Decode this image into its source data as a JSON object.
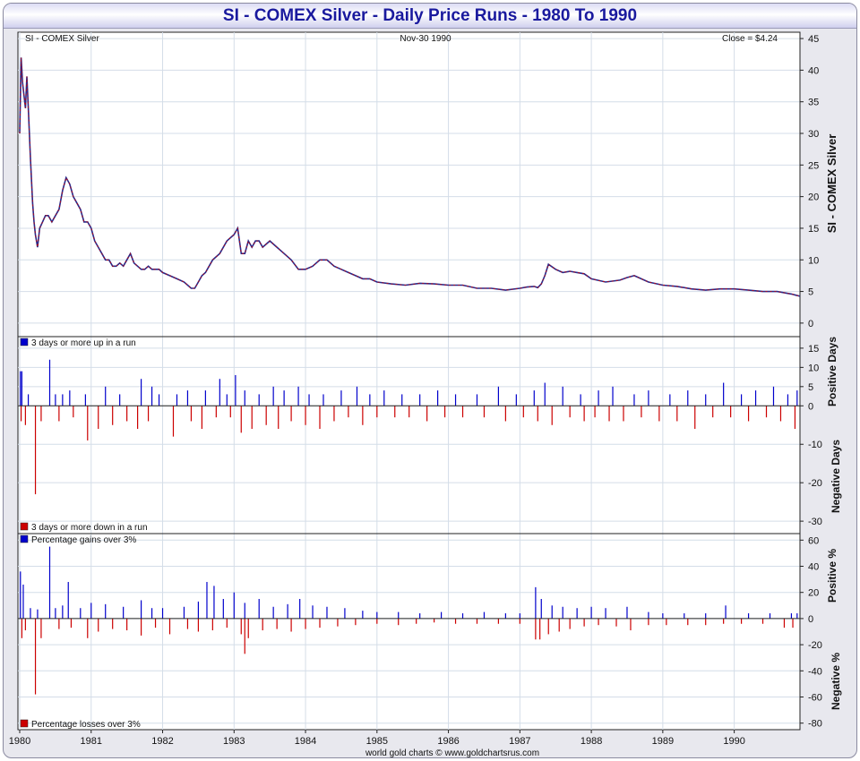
{
  "title": "SI  -  COMEX Silver - Daily Price Runs - 1980 To 1990",
  "footer": "world gold charts © www.goldchartsrus.com",
  "colors": {
    "up": "#0000cc",
    "down": "#cc0000",
    "grid": "#d4dde8",
    "title": "#1a1a9e"
  },
  "chart_data": [
    {
      "type": "line",
      "header_left": "SI  -  COMEX Silver",
      "header_center": "Nov-30  1990",
      "header_right": "Close = $4.24",
      "ylabel": "SI  -  COMEX Silver",
      "ylim": [
        -2,
        46
      ],
      "yticks": [
        0,
        5,
        10,
        15,
        20,
        25,
        30,
        35,
        40,
        45
      ],
      "xlim": [
        1980.0,
        1990.92
      ],
      "xticks": [
        1980,
        1981,
        1982,
        1983,
        1984,
        1985,
        1986,
        1987,
        1988,
        1989,
        1990
      ],
      "xtick_labels": [
        "1980",
        "1981",
        "1982",
        "1983",
        "1984",
        "1985",
        "1986",
        "1987",
        "1988",
        "1989",
        "1990"
      ],
      "series": [
        {
          "x": [
            1980.0,
            1980.02,
            1980.04,
            1980.06,
            1980.08,
            1980.1,
            1980.12,
            1980.15,
            1980.18,
            1980.2,
            1980.22,
            1980.25,
            1980.28,
            1980.32,
            1980.36,
            1980.4,
            1980.45,
            1980.5,
            1980.55,
            1980.6,
            1980.65,
            1980.7,
            1980.75,
            1980.8,
            1980.85,
            1980.9,
            1980.95,
            1981.0,
            1981.05,
            1981.1,
            1981.15,
            1981.2,
            1981.25,
            1981.3,
            1981.35,
            1981.4,
            1981.45,
            1981.5,
            1981.55,
            1981.6,
            1981.65,
            1981.7,
            1981.75,
            1981.8,
            1981.85,
            1981.9,
            1981.95,
            1982.0,
            1982.1,
            1982.2,
            1982.3,
            1982.4,
            1982.45,
            1982.5,
            1982.55,
            1982.6,
            1982.65,
            1982.7,
            1982.8,
            1982.9,
            1983.0,
            1983.05,
            1983.1,
            1983.15,
            1983.2,
            1983.25,
            1983.3,
            1983.35,
            1983.4,
            1983.5,
            1983.6,
            1983.7,
            1983.8,
            1983.9,
            1984.0,
            1984.1,
            1984.2,
            1984.3,
            1984.4,
            1984.5,
            1984.6,
            1984.7,
            1984.8,
            1984.9,
            1985.0,
            1985.2,
            1985.4,
            1985.6,
            1985.8,
            1986.0,
            1986.2,
            1986.4,
            1986.6,
            1986.8,
            1987.0,
            1987.1,
            1987.2,
            1987.25,
            1987.3,
            1987.35,
            1987.4,
            1987.5,
            1987.6,
            1987.7,
            1987.8,
            1987.9,
            1988.0,
            1988.2,
            1988.4,
            1988.5,
            1988.6,
            1988.8,
            1989.0,
            1989.2,
            1989.4,
            1989.6,
            1989.8,
            1990.0,
            1990.2,
            1990.4,
            1990.6,
            1990.8,
            1990.92
          ],
          "y": [
            30,
            42,
            38,
            36,
            34,
            39,
            34,
            26,
            19,
            16,
            14,
            12,
            15,
            16,
            17,
            17,
            16,
            17,
            18,
            21,
            23,
            22,
            20,
            19,
            18,
            16,
            16,
            15,
            13,
            12,
            11,
            10,
            10,
            9,
            9,
            9.5,
            9,
            10,
            11,
            9.5,
            9,
            8.5,
            8.5,
            9,
            8.5,
            8.5,
            8.5,
            8,
            7.5,
            7,
            6.5,
            5.5,
            5.5,
            6.5,
            7.5,
            8,
            9,
            10,
            11,
            13,
            14,
            15,
            11,
            11,
            13,
            12,
            13,
            13,
            12,
            13,
            12,
            11,
            10,
            8.5,
            8.5,
            9,
            10,
            10,
            9,
            8.5,
            8,
            7.5,
            7,
            7,
            6.5,
            6.2,
            6.0,
            6.3,
            6.2,
            6.0,
            6.0,
            5.5,
            5.5,
            5.2,
            5.5,
            5.7,
            5.8,
            5.6,
            6.2,
            7.5,
            9.3,
            8.5,
            8.0,
            8.2,
            8.0,
            7.8,
            7.0,
            6.5,
            6.8,
            7.2,
            7.5,
            6.5,
            6.0,
            5.8,
            5.4,
            5.2,
            5.4,
            5.4,
            5.2,
            5.0,
            5.0,
            4.6,
            4.24
          ]
        }
      ]
    },
    {
      "type": "bar",
      "series": [
        {
          "name": "3 days or more up in a run",
          "color": "#0000cc"
        },
        {
          "name": "3 days or more down in a run",
          "color": "#cc0000"
        }
      ],
      "ylabel_top": "Positive Days",
      "ylabel_bottom": "Negative Days",
      "ylim": [
        -33,
        18
      ],
      "yticks": [
        -30,
        -20,
        -10,
        0,
        5,
        10,
        15
      ],
      "up": [
        [
          1980.01,
          9
        ],
        [
          1980.03,
          9
        ],
        [
          1980.12,
          3
        ],
        [
          1980.42,
          12
        ],
        [
          1980.5,
          3
        ],
        [
          1980.6,
          3
        ],
        [
          1980.7,
          4
        ],
        [
          1980.92,
          3
        ],
        [
          1981.2,
          5
        ],
        [
          1981.4,
          3
        ],
        [
          1981.7,
          7
        ],
        [
          1981.85,
          5
        ],
        [
          1981.95,
          3
        ],
        [
          1982.2,
          3
        ],
        [
          1982.35,
          4
        ],
        [
          1982.6,
          4
        ],
        [
          1982.8,
          7
        ],
        [
          1982.9,
          3
        ],
        [
          1983.02,
          8
        ],
        [
          1983.15,
          4
        ],
        [
          1983.35,
          3
        ],
        [
          1983.55,
          5
        ],
        [
          1983.7,
          4
        ],
        [
          1983.9,
          5
        ],
        [
          1984.05,
          3
        ],
        [
          1984.25,
          3
        ],
        [
          1984.5,
          4
        ],
        [
          1984.72,
          5
        ],
        [
          1984.9,
          3
        ],
        [
          1985.1,
          4
        ],
        [
          1985.35,
          3
        ],
        [
          1985.6,
          3
        ],
        [
          1985.85,
          4
        ],
        [
          1986.1,
          3
        ],
        [
          1986.4,
          3
        ],
        [
          1986.7,
          5
        ],
        [
          1986.95,
          3
        ],
        [
          1987.2,
          4
        ],
        [
          1987.35,
          6
        ],
        [
          1987.6,
          5
        ],
        [
          1987.85,
          3
        ],
        [
          1988.1,
          4
        ],
        [
          1988.3,
          5
        ],
        [
          1988.6,
          3
        ],
        [
          1988.8,
          4
        ],
        [
          1989.1,
          3
        ],
        [
          1989.35,
          4
        ],
        [
          1989.6,
          3
        ],
        [
          1989.85,
          6
        ],
        [
          1990.1,
          3
        ],
        [
          1990.3,
          4
        ],
        [
          1990.55,
          5
        ],
        [
          1990.75,
          3
        ],
        [
          1990.88,
          4
        ]
      ],
      "down": [
        [
          1980.02,
          -4
        ],
        [
          1980.08,
          -5
        ],
        [
          1980.22,
          -23
        ],
        [
          1980.3,
          -4
        ],
        [
          1980.55,
          -4
        ],
        [
          1980.75,
          -3
        ],
        [
          1980.95,
          -9
        ],
        [
          1981.1,
          -6
        ],
        [
          1981.3,
          -5
        ],
        [
          1981.5,
          -4
        ],
        [
          1981.65,
          -6
        ],
        [
          1981.8,
          -4
        ],
        [
          1982.15,
          -8
        ],
        [
          1982.4,
          -4
        ],
        [
          1982.55,
          -6
        ],
        [
          1982.75,
          -3
        ],
        [
          1982.95,
          -3
        ],
        [
          1983.1,
          -7
        ],
        [
          1983.25,
          -6
        ],
        [
          1983.45,
          -5
        ],
        [
          1983.62,
          -6
        ],
        [
          1983.8,
          -4
        ],
        [
          1984.0,
          -5
        ],
        [
          1984.2,
          -6
        ],
        [
          1984.4,
          -4
        ],
        [
          1984.6,
          -3
        ],
        [
          1984.8,
          -5
        ],
        [
          1985.0,
          -3
        ],
        [
          1985.25,
          -3
        ],
        [
          1985.45,
          -3
        ],
        [
          1985.7,
          -4
        ],
        [
          1985.95,
          -3
        ],
        [
          1986.2,
          -3
        ],
        [
          1986.5,
          -3
        ],
        [
          1986.8,
          -4
        ],
        [
          1987.05,
          -3
        ],
        [
          1987.25,
          -4
        ],
        [
          1987.45,
          -5
        ],
        [
          1987.7,
          -3
        ],
        [
          1987.9,
          -4
        ],
        [
          1988.05,
          -3
        ],
        [
          1988.25,
          -4
        ],
        [
          1988.45,
          -4
        ],
        [
          1988.7,
          -3
        ],
        [
          1988.95,
          -4
        ],
        [
          1989.2,
          -4
        ],
        [
          1989.45,
          -6
        ],
        [
          1989.7,
          -3
        ],
        [
          1989.95,
          -3
        ],
        [
          1990.2,
          -4
        ],
        [
          1990.45,
          -3
        ],
        [
          1990.65,
          -4
        ],
        [
          1990.85,
          -6
        ]
      ]
    },
    {
      "type": "bar",
      "series": [
        {
          "name": "Percentage gains over 3%",
          "color": "#0000cc"
        },
        {
          "name": "Percentage losses over 3%",
          "color": "#cc0000"
        }
      ],
      "ylabel_top": "Positive %",
      "ylabel_bottom": "Negative %",
      "ylim": [
        -85,
        65
      ],
      "yticks": [
        -80,
        -60,
        -40,
        -20,
        0,
        20,
        40,
        60
      ],
      "up": [
        [
          1980.01,
          36
        ],
        [
          1980.05,
          26
        ],
        [
          1980.15,
          8
        ],
        [
          1980.25,
          7
        ],
        [
          1980.42,
          55
        ],
        [
          1980.5,
          8
        ],
        [
          1980.6,
          10
        ],
        [
          1980.68,
          28
        ],
        [
          1980.85,
          8
        ],
        [
          1981.0,
          12
        ],
        [
          1981.2,
          11
        ],
        [
          1981.45,
          9
        ],
        [
          1981.7,
          14
        ],
        [
          1981.85,
          8
        ],
        [
          1982.0,
          8
        ],
        [
          1982.3,
          9
        ],
        [
          1982.5,
          13
        ],
        [
          1982.62,
          28
        ],
        [
          1982.72,
          25
        ],
        [
          1982.85,
          15
        ],
        [
          1983.0,
          20
        ],
        [
          1983.15,
          12
        ],
        [
          1983.35,
          15
        ],
        [
          1983.55,
          9
        ],
        [
          1983.75,
          11
        ],
        [
          1983.92,
          15
        ],
        [
          1984.1,
          10
        ],
        [
          1984.3,
          9
        ],
        [
          1984.55,
          8
        ],
        [
          1984.8,
          6
        ],
        [
          1985.0,
          5
        ],
        [
          1985.3,
          5
        ],
        [
          1985.6,
          4
        ],
        [
          1985.9,
          5
        ],
        [
          1986.2,
          4
        ],
        [
          1986.5,
          5
        ],
        [
          1986.8,
          4
        ],
        [
          1987.0,
          4
        ],
        [
          1987.22,
          24
        ],
        [
          1987.3,
          15
        ],
        [
          1987.45,
          10
        ],
        [
          1987.6,
          9
        ],
        [
          1987.8,
          8
        ],
        [
          1988.0,
          9
        ],
        [
          1988.2,
          8
        ],
        [
          1988.5,
          9
        ],
        [
          1988.8,
          5
        ],
        [
          1989.0,
          4
        ],
        [
          1989.3,
          4
        ],
        [
          1989.6,
          4
        ],
        [
          1989.88,
          10
        ],
        [
          1990.2,
          4
        ],
        [
          1990.5,
          4
        ],
        [
          1990.8,
          4
        ],
        [
          1990.88,
          4
        ]
      ],
      "down": [
        [
          1980.03,
          -15
        ],
        [
          1980.08,
          -9
        ],
        [
          1980.22,
          -58
        ],
        [
          1980.3,
          -15
        ],
        [
          1980.55,
          -8
        ],
        [
          1980.72,
          -7
        ],
        [
          1980.95,
          -15
        ],
        [
          1981.1,
          -10
        ],
        [
          1981.3,
          -8
        ],
        [
          1981.5,
          -9
        ],
        [
          1981.7,
          -13
        ],
        [
          1981.9,
          -7
        ],
        [
          1982.1,
          -12
        ],
        [
          1982.35,
          -8
        ],
        [
          1982.5,
          -10
        ],
        [
          1982.7,
          -9
        ],
        [
          1982.9,
          -7
        ],
        [
          1983.1,
          -12
        ],
        [
          1983.2,
          -15
        ],
        [
          1983.15,
          -27
        ],
        [
          1983.4,
          -9
        ],
        [
          1983.6,
          -8
        ],
        [
          1983.8,
          -10
        ],
        [
          1984.0,
          -8
        ],
        [
          1984.2,
          -7
        ],
        [
          1984.45,
          -6
        ],
        [
          1984.7,
          -5
        ],
        [
          1985.0,
          -4
        ],
        [
          1985.3,
          -5
        ],
        [
          1985.55,
          -4
        ],
        [
          1985.8,
          -3
        ],
        [
          1986.1,
          -4
        ],
        [
          1986.4,
          -4
        ],
        [
          1986.7,
          -4
        ],
        [
          1987.0,
          -4
        ],
        [
          1987.22,
          -16
        ],
        [
          1987.28,
          -16
        ],
        [
          1987.4,
          -12
        ],
        [
          1987.55,
          -10
        ],
        [
          1987.7,
          -8
        ],
        [
          1987.9,
          -6
        ],
        [
          1988.1,
          -5
        ],
        [
          1988.35,
          -6
        ],
        [
          1988.55,
          -9
        ],
        [
          1988.8,
          -5
        ],
        [
          1989.05,
          -5
        ],
        [
          1989.35,
          -5
        ],
        [
          1989.6,
          -5
        ],
        [
          1989.85,
          -4
        ],
        [
          1990.1,
          -4
        ],
        [
          1990.4,
          -4
        ],
        [
          1990.7,
          -7
        ],
        [
          1990.82,
          -7
        ]
      ]
    }
  ]
}
